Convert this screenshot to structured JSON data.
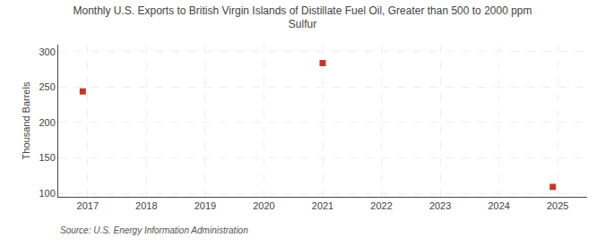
{
  "chart_data": {
    "type": "scatter",
    "title": "Monthly U.S. Exports to British Virgin Islands of Distillate Fuel Oil, Greater than 500 to 2000 ppm\nSulfur",
    "y_label": "Thousand Barrels",
    "annotations": [
      "Source: U.S. Energy Information Administration"
    ],
    "x": [
      2016.917,
      2021.0,
      2024.917
    ],
    "values": [
      244,
      284,
      109
    ],
    "color": "#c0392b",
    "marker": "square",
    "xlim": [
      2016.5,
      2025.5
    ],
    "ylim": [
      95,
      310
    ],
    "xticks": [
      2017,
      2018,
      2019,
      2020,
      2021,
      2022,
      2023,
      2024,
      2025
    ],
    "yticks": [
      100,
      150,
      200,
      250,
      300
    ],
    "grid": true
  }
}
